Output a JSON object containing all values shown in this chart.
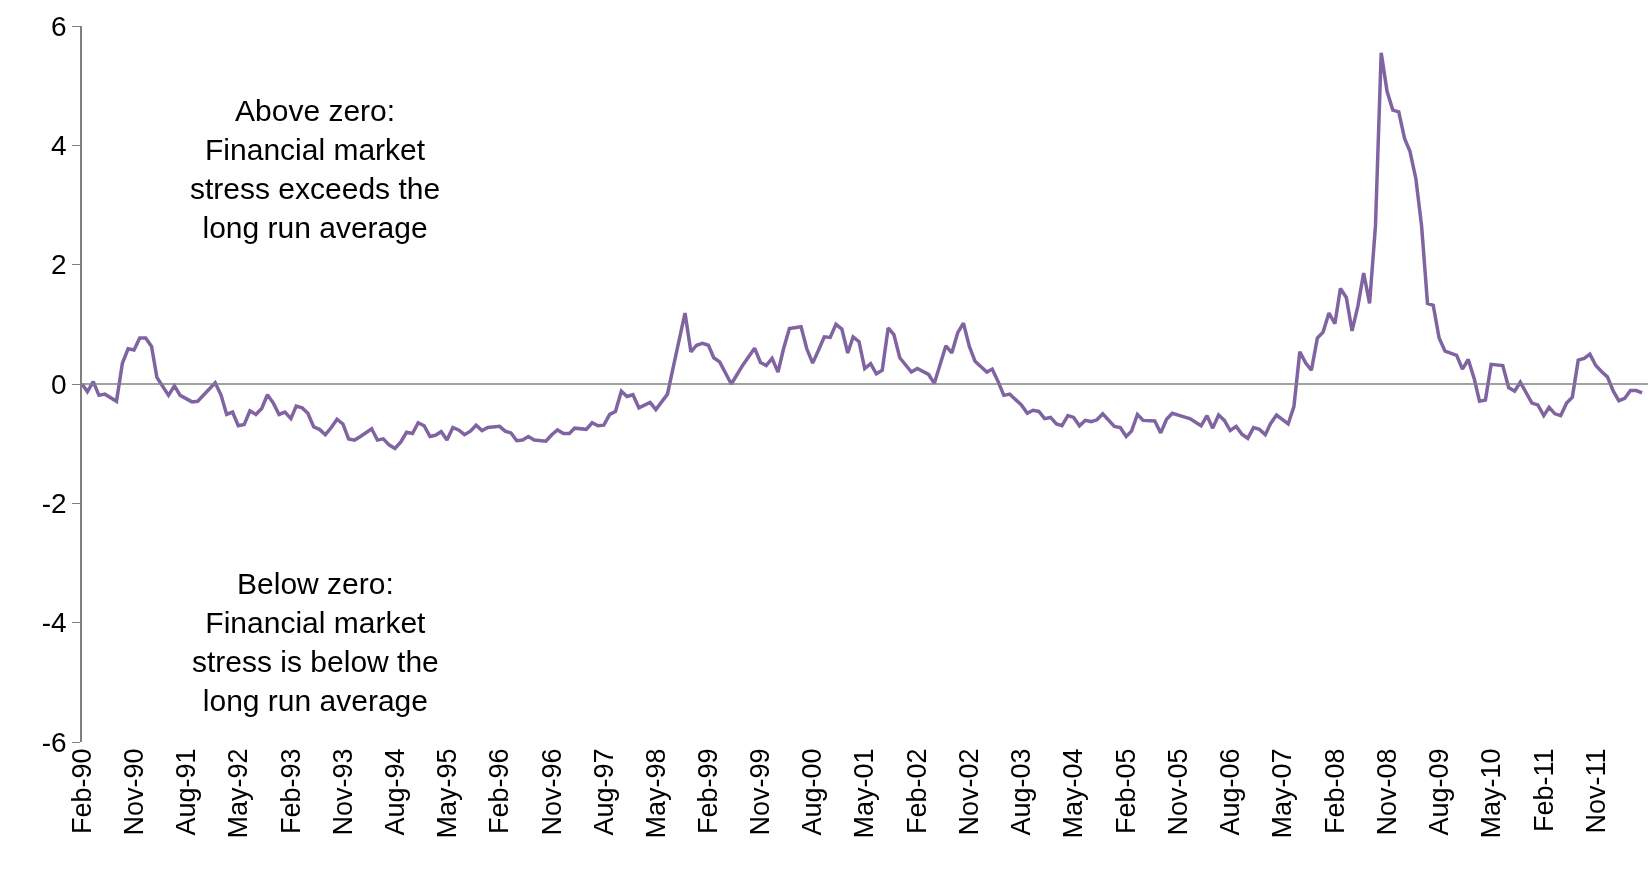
{
  "chart_data": {
    "type": "line",
    "x": [
      "1990-02",
      "1990-03",
      "1990-04",
      "1990-05",
      "1990-06",
      "1990-08",
      "1990-09",
      "1990-10",
      "1990-11",
      "1990-12",
      "1991-01",
      "1991-02",
      "1991-03",
      "1991-05",
      "1991-06",
      "1991-07",
      "1991-09",
      "1991-10",
      "1992-01",
      "1992-02",
      "1992-03",
      "1992-04",
      "1992-05",
      "1992-06",
      "1992-07",
      "1992-08",
      "1992-09",
      "1992-10",
      "1992-11",
      "1992-12",
      "1993-01",
      "1993-02",
      "1993-03",
      "1993-04",
      "1993-05",
      "1993-06",
      "1993-07",
      "1993-08",
      "1993-09",
      "1993-10",
      "1993-11",
      "1993-12",
      "1994-01",
      "1994-02",
      "1994-04",
      "1994-05",
      "1994-06",
      "1994-07",
      "1994-08",
      "1994-09",
      "1994-10",
      "1994-11",
      "1994-12",
      "1995-01",
      "1995-02",
      "1995-03",
      "1995-04",
      "1995-05",
      "1995-06",
      "1995-07",
      "1995-08",
      "1995-09",
      "1995-10",
      "1995-11",
      "1995-12",
      "1996-02",
      "1996-03",
      "1996-04",
      "1996-05",
      "1996-06",
      "1996-07",
      "1996-08",
      "1996-10",
      "1996-11",
      "1996-12",
      "1997-01",
      "1997-02",
      "1997-03",
      "1997-05",
      "1997-06",
      "1997-07",
      "1997-08",
      "1997-09",
      "1997-10",
      "1997-11",
      "1997-12",
      "1998-01",
      "1998-02",
      "1998-04",
      "1998-05",
      "1998-07",
      "1998-08",
      "1998-10",
      "1998-11",
      "1998-12",
      "1999-01",
      "1999-02",
      "1999-03",
      "1999-04",
      "1999-06",
      "1999-08",
      "1999-10",
      "1999-11",
      "1999-12",
      "2000-01",
      "2000-02",
      "2000-03",
      "2000-04",
      "2000-06",
      "2000-07",
      "2000-08",
      "2000-09",
      "2000-10",
      "2000-11",
      "2000-12",
      "2001-01",
      "2001-02",
      "2001-03",
      "2001-04",
      "2001-05",
      "2001-06",
      "2001-07",
      "2001-08",
      "2001-09",
      "2001-10",
      "2001-11",
      "2002-01",
      "2002-02",
      "2002-04",
      "2002-05",
      "2002-07",
      "2002-08",
      "2002-09",
      "2002-10",
      "2002-11",
      "2002-12",
      "2003-01",
      "2003-02",
      "2003-03",
      "2003-04",
      "2003-05",
      "2003-06",
      "2003-08",
      "2003-09",
      "2003-10",
      "2003-11",
      "2003-12",
      "2004-01",
      "2004-02",
      "2004-03",
      "2004-04",
      "2004-05",
      "2004-06",
      "2004-07",
      "2004-08",
      "2004-09",
      "2004-10",
      "2004-12",
      "2005-01",
      "2005-02",
      "2005-03",
      "2005-04",
      "2005-05",
      "2005-07",
      "2005-08",
      "2005-09",
      "2005-10",
      "2005-12",
      "2006-01",
      "2006-03",
      "2006-04",
      "2006-05",
      "2006-06",
      "2006-07",
      "2006-08",
      "2006-09",
      "2006-10",
      "2006-11",
      "2006-12",
      "2007-01",
      "2007-02",
      "2007-03",
      "2007-04",
      "2007-06",
      "2007-07",
      "2007-08",
      "2007-09",
      "2007-10",
      "2007-11",
      "2007-12",
      "2008-01",
      "2008-02",
      "2008-03",
      "2008-04",
      "2008-05",
      "2008-06",
      "2008-07",
      "2008-08",
      "2008-09",
      "2008-10",
      "2008-11",
      "2008-12",
      "2009-01",
      "2009-02",
      "2009-03",
      "2009-04",
      "2009-05",
      "2009-06",
      "2009-07",
      "2009-08",
      "2009-09",
      "2009-11",
      "2009-12",
      "2010-01",
      "2010-02",
      "2010-03",
      "2010-04",
      "2010-05",
      "2010-07",
      "2010-08",
      "2010-09",
      "2010-10",
      "2010-12",
      "2011-01",
      "2011-02",
      "2011-03",
      "2011-04",
      "2011-05",
      "2011-06",
      "2011-07",
      "2011-08",
      "2011-09",
      "2011-10",
      "2011-11",
      "2011-12",
      "2012-01",
      "2012-02",
      "2012-03",
      "2012-04",
      "2012-05",
      "2012-06",
      "2012-07"
    ],
    "series": [
      {
        "color": "#8064a2",
        "values": [
          0,
          -0.13,
          0.04,
          -0.19,
          -0.17,
          -0.29,
          0.35,
          0.59,
          0.57,
          0.77,
          0.77,
          0.63,
          0.11,
          -0.19,
          -0.03,
          -0.19,
          -0.3,
          -0.29,
          0.02,
          -0.19,
          -0.51,
          -0.47,
          -0.7,
          -0.68,
          -0.45,
          -0.51,
          -0.41,
          -0.18,
          -0.32,
          -0.51,
          -0.47,
          -0.58,
          -0.37,
          -0.4,
          -0.49,
          -0.72,
          -0.76,
          -0.85,
          -0.73,
          -0.59,
          -0.67,
          -0.92,
          -0.94,
          -0.88,
          -0.75,
          -0.94,
          -0.92,
          -1.02,
          -1.08,
          -0.97,
          -0.81,
          -0.83,
          -0.65,
          -0.7,
          -0.88,
          -0.86,
          -0.8,
          -0.94,
          -0.73,
          -0.77,
          -0.85,
          -0.79,
          -0.69,
          -0.78,
          -0.73,
          -0.71,
          -0.79,
          -0.82,
          -0.95,
          -0.94,
          -0.88,
          -0.94,
          -0.96,
          -0.85,
          -0.77,
          -0.83,
          -0.83,
          -0.74,
          -0.76,
          -0.65,
          -0.7,
          -0.69,
          -0.51,
          -0.46,
          -0.12,
          -0.21,
          -0.18,
          -0.4,
          -0.31,
          -0.43,
          -0.17,
          0.29,
          1.19,
          0.54,
          0.65,
          0.68,
          0.65,
          0.44,
          0.37,
          0.0,
          0.32,
          0.6,
          0.36,
          0.31,
          0.43,
          0.2,
          0.59,
          0.93,
          0.96,
          0.59,
          0.35,
          0.57,
          0.79,
          0.78,
          1.0,
          0.92,
          0.52,
          0.79,
          0.71,
          0.26,
          0.34,
          0.17,
          0.23,
          0.94,
          0.83,
          0.44,
          0.2,
          0.26,
          0.16,
          0.01,
          0.64,
          0.52,
          0.86,
          1.02,
          0.63,
          0.38,
          0.29,
          0.2,
          0.25,
          0.04,
          -0.19,
          -0.17,
          -0.35,
          -0.49,
          -0.44,
          -0.46,
          -0.58,
          -0.56,
          -0.67,
          -0.7,
          -0.53,
          -0.56,
          -0.7,
          -0.61,
          -0.63,
          -0.6,
          -0.5,
          -0.71,
          -0.73,
          -0.88,
          -0.79,
          -0.51,
          -0.61,
          -0.62,
          -0.82,
          -0.59,
          -0.49,
          -0.55,
          -0.58,
          -0.7,
          -0.53,
          -0.74,
          -0.52,
          -0.61,
          -0.78,
          -0.71,
          -0.84,
          -0.91,
          -0.73,
          -0.76,
          -0.85,
          -0.66,
          -0.52,
          -0.67,
          -0.38,
          0.54,
          0.35,
          0.23,
          0.77,
          0.87,
          1.19,
          1.01,
          1.6,
          1.45,
          0.89,
          1.31,
          1.86,
          1.35,
          2.65,
          5.55,
          4.9,
          4.59,
          4.56,
          4.11,
          3.9,
          3.44,
          2.65,
          1.35,
          1.32,
          0.77,
          0.55,
          0.48,
          0.25,
          0.41,
          0.09,
          -0.29,
          -0.27,
          0.33,
          0.31,
          -0.06,
          -0.12,
          0.03,
          -0.32,
          -0.35,
          -0.53,
          -0.39,
          -0.5,
          -0.53,
          -0.32,
          -0.22,
          0.4,
          0.43,
          0.5,
          0.31,
          0.21,
          0.12,
          -0.12,
          -0.28,
          -0.24,
          -0.11,
          -0.11,
          -0.15
        ]
      }
    ],
    "xlim": [
      "1990-02",
      "2012-08"
    ],
    "xticks": [
      {
        "value": "1990-02",
        "label": "Feb-90"
      },
      {
        "value": "1990-11",
        "label": "Nov-90"
      },
      {
        "value": "1991-08",
        "label": "Aug-91"
      },
      {
        "value": "1992-05",
        "label": "May-92"
      },
      {
        "value": "1993-02",
        "label": "Feb-93"
      },
      {
        "value": "1993-11",
        "label": "Nov-93"
      },
      {
        "value": "1994-08",
        "label": "Aug-94"
      },
      {
        "value": "1995-05",
        "label": "May-95"
      },
      {
        "value": "1996-02",
        "label": "Feb-96"
      },
      {
        "value": "1996-11",
        "label": "Nov-96"
      },
      {
        "value": "1997-08",
        "label": "Aug-97"
      },
      {
        "value": "1998-05",
        "label": "May-98"
      },
      {
        "value": "1999-02",
        "label": "Feb-99"
      },
      {
        "value": "1999-11",
        "label": "Nov-99"
      },
      {
        "value": "2000-08",
        "label": "Aug-00"
      },
      {
        "value": "2001-05",
        "label": "May-01"
      },
      {
        "value": "2002-02",
        "label": "Feb-02"
      },
      {
        "value": "2002-11",
        "label": "Nov-02"
      },
      {
        "value": "2003-08",
        "label": "Aug-03"
      },
      {
        "value": "2004-05",
        "label": "May-04"
      },
      {
        "value": "2005-02",
        "label": "Feb-05"
      },
      {
        "value": "2005-11",
        "label": "Nov-05"
      },
      {
        "value": "2006-08",
        "label": "Aug-06"
      },
      {
        "value": "2007-05",
        "label": "May-07"
      },
      {
        "value": "2008-02",
        "label": "Feb-08"
      },
      {
        "value": "2008-11",
        "label": "Nov-08"
      },
      {
        "value": "2009-08",
        "label": "Aug-09"
      },
      {
        "value": "2010-05",
        "label": "May-10"
      },
      {
        "value": "2011-02",
        "label": "Feb-11"
      },
      {
        "value": "2011-11",
        "label": "Nov-11"
      }
    ],
    "ylim": [
      -6,
      6
    ],
    "yticks": [
      -6,
      -4,
      -2,
      0,
      2,
      4,
      6
    ],
    "ref_lines": [
      {
        "axis": "y",
        "value": 0,
        "color": "#808080"
      }
    ],
    "annotations": [
      "Above zero:\nFinancial market\nstress exceeds the\nlong run average",
      "Below zero:\nFinancial market\nstress is below the\nlong run average"
    ],
    "marker": "none",
    "line_style": "solid"
  }
}
